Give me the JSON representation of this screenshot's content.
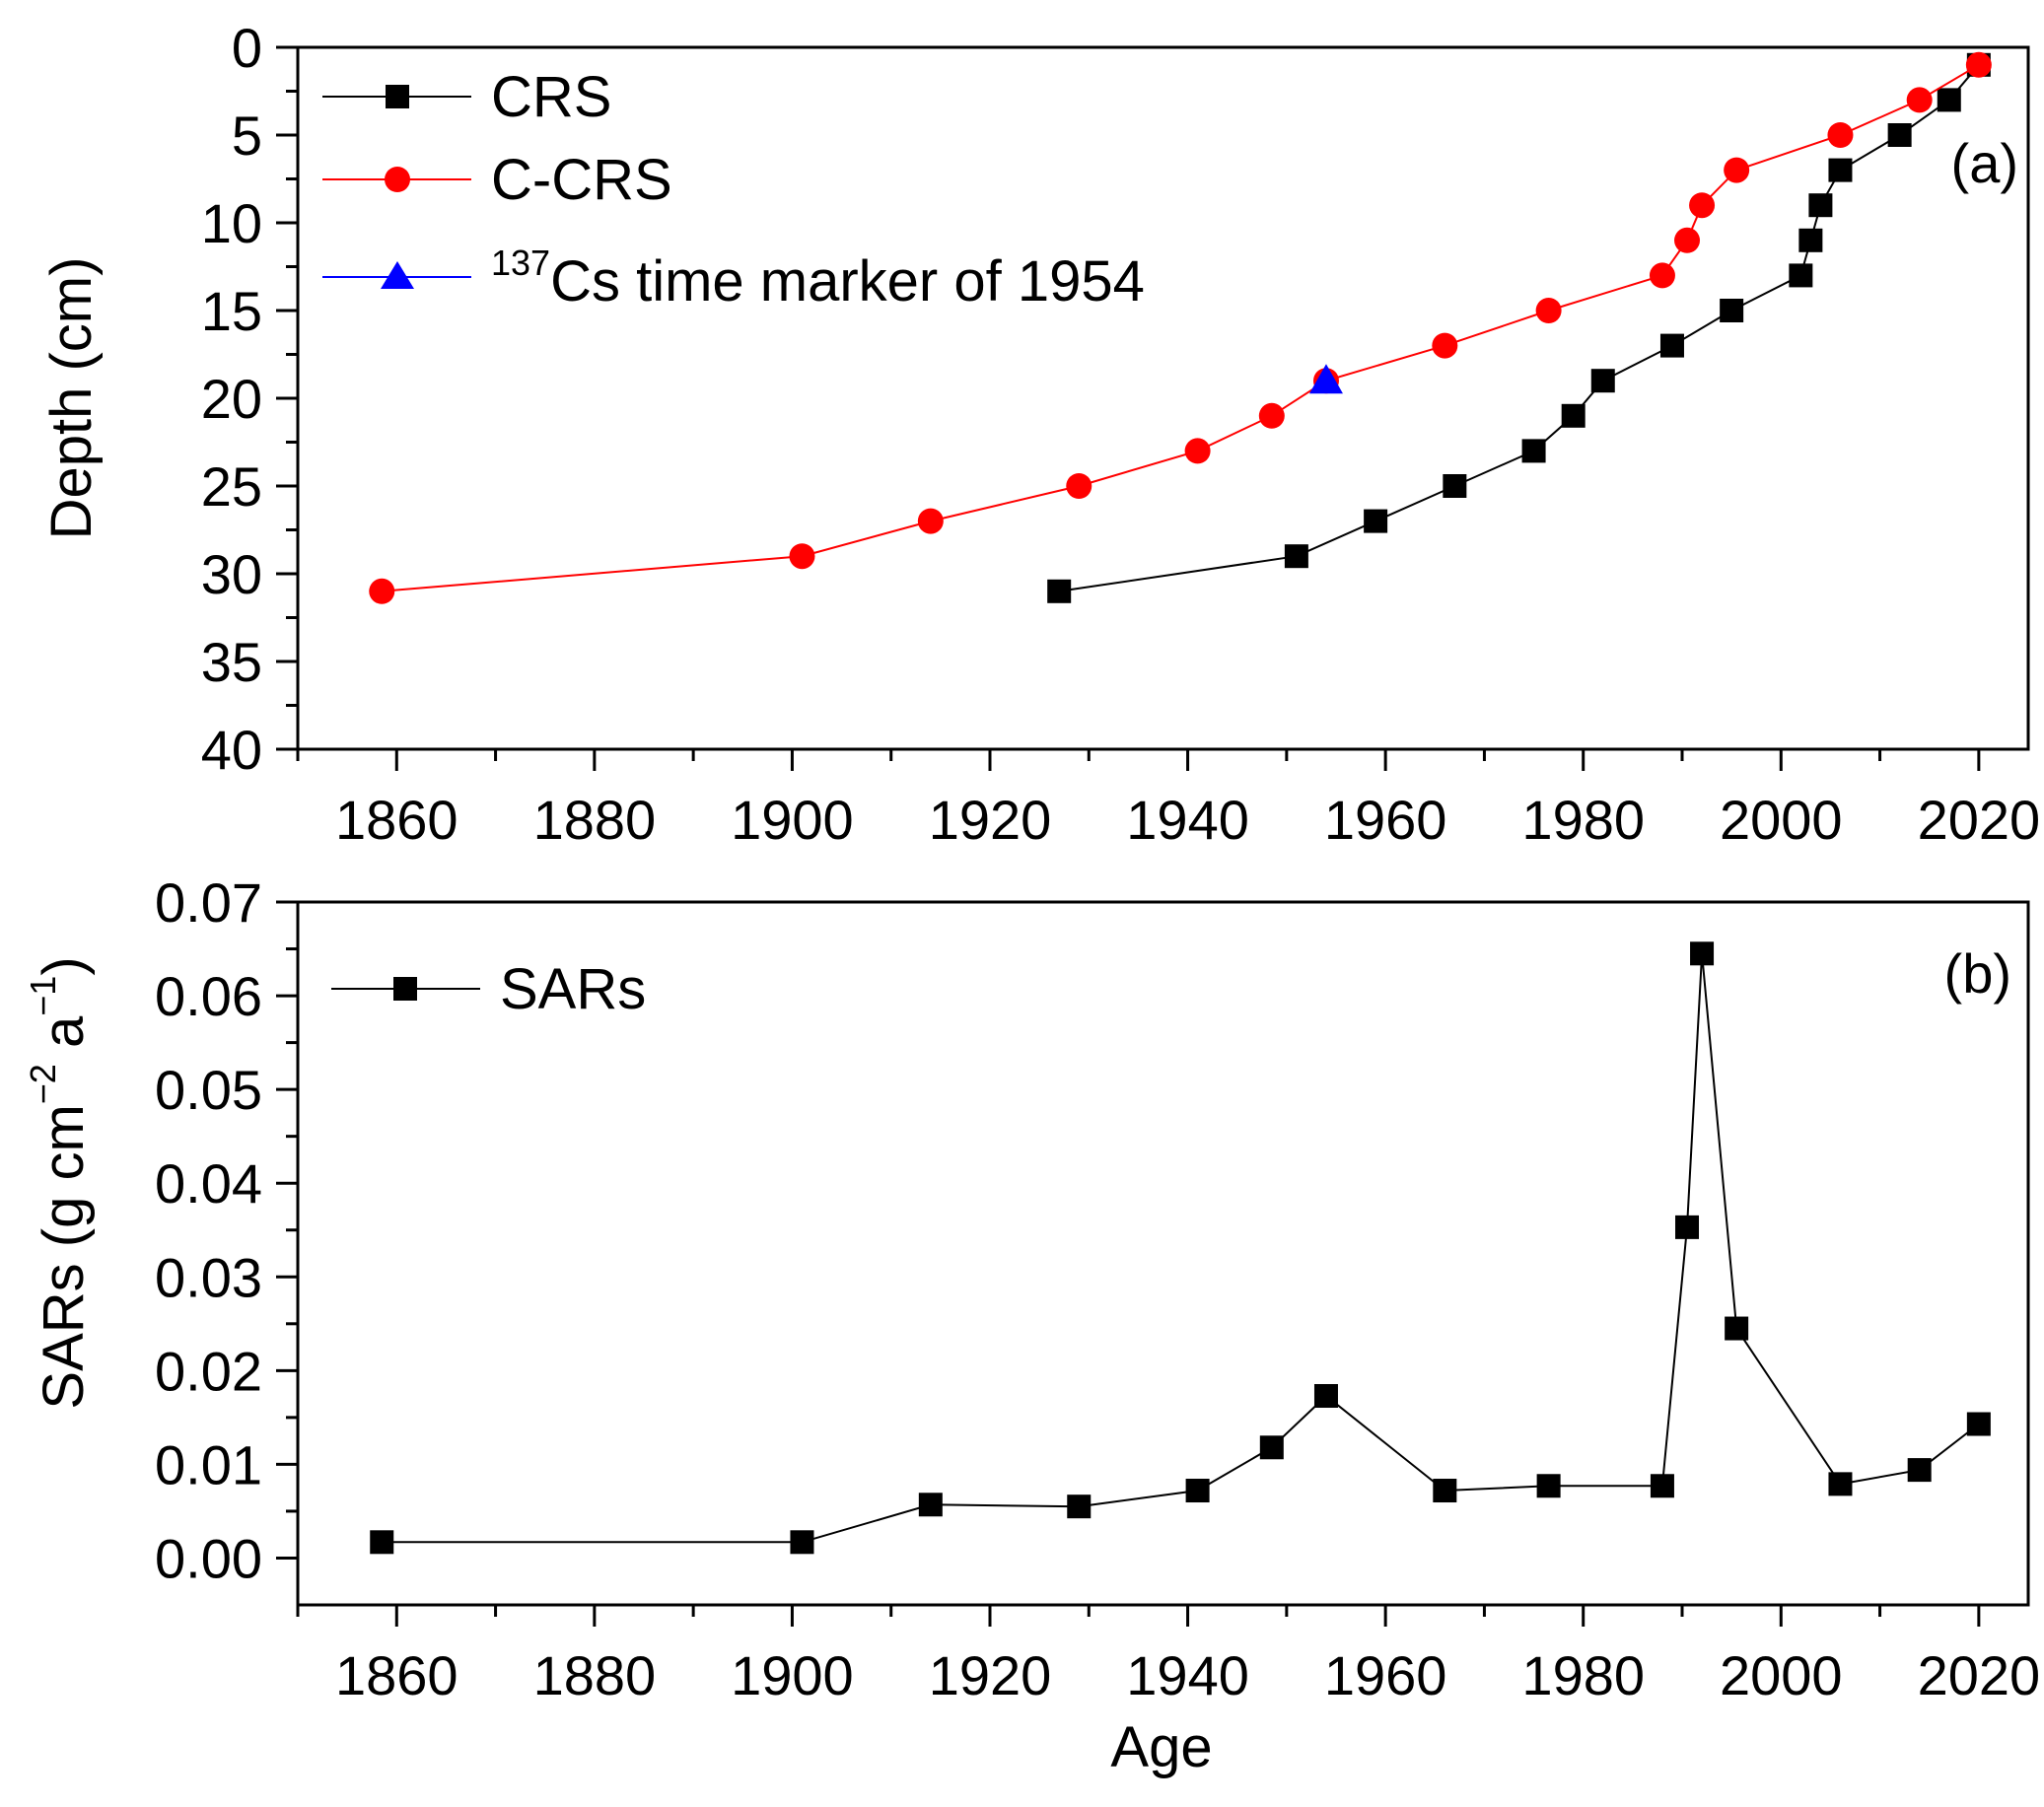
{
  "chart_data": [
    {
      "panel": "(a)",
      "type": "line",
      "xlabel": "",
      "ylabel": "Depth (cm)",
      "xlim": [
        1850,
        2025
      ],
      "ylim": [
        40,
        0
      ],
      "y_inverted": true,
      "x_ticks": [
        "1860",
        "1880",
        "1900",
        "1920",
        "1940",
        "1960",
        "1980",
        "2000",
        "2020"
      ],
      "y_ticks": [
        "0",
        "5",
        "10",
        "15",
        "20",
        "25",
        "30",
        "35",
        "40"
      ],
      "legend": [
        {
          "key": "crs",
          "label": "CRS"
        },
        {
          "key": "ccrs",
          "label": "C-CRS"
        },
        {
          "key": "cs",
          "label_sup": "137",
          "label": "Cs time marker of 1954"
        }
      ],
      "legend_position": "top-left",
      "series": [
        {
          "name": "CRS",
          "color": "#000000",
          "marker": "square",
          "x": [
            2020,
            2017,
            2012,
            2006,
            2004,
            2003,
            2002,
            1995,
            1989,
            1982,
            1979,
            1975,
            1967,
            1959,
            1951,
            1927
          ],
          "y": [
            1,
            3,
            5,
            7,
            9,
            11,
            13,
            15,
            17,
            19,
            21,
            23,
            25,
            27,
            29,
            31
          ]
        },
        {
          "name": "C-CRS",
          "color": "#ff0000",
          "marker": "circle",
          "x": [
            2020,
            2014,
            2006,
            1995.5,
            1992,
            1990.5,
            1988,
            1976.5,
            1966,
            1954,
            1948.5,
            1941,
            1929,
            1914,
            1901,
            1858.5
          ],
          "y": [
            1,
            3,
            5,
            7,
            9,
            11,
            13,
            15,
            17,
            19,
            21,
            23,
            25,
            27,
            29,
            31
          ]
        },
        {
          "name": "137Cs time marker of 1954",
          "color": "#0000ff",
          "marker": "triangle",
          "x": [
            1954
          ],
          "y": [
            19
          ]
        }
      ]
    },
    {
      "panel": "(b)",
      "type": "line",
      "xlabel": "Age",
      "ylabel": "SARs (g cm⁻² a⁻¹)",
      "ylabel_parts": {
        "a": "SARs (g cm",
        "b": "−2",
        "c": " a",
        "d": "−1",
        "e": ")"
      },
      "xlim": [
        1850,
        2025
      ],
      "ylim": [
        -0.005,
        0.07
      ],
      "x_ticks": [
        "1860",
        "1880",
        "1900",
        "1920",
        "1940",
        "1960",
        "1980",
        "2000",
        "2020"
      ],
      "y_ticks": [
        "0.00",
        "0.01",
        "0.02",
        "0.03",
        "0.04",
        "0.05",
        "0.06",
        "0.07"
      ],
      "legend": [
        {
          "key": "sars",
          "label": "SARs"
        }
      ],
      "legend_position": "top-left",
      "series": [
        {
          "name": "SARs",
          "color": "#000000",
          "marker": "square",
          "x": [
            1858.5,
            1901,
            1914,
            1929,
            1941,
            1948.5,
            1954,
            1966,
            1976.5,
            1988,
            1990.5,
            1992,
            1995.5,
            2006,
            2014,
            2020
          ],
          "y": [
            0.0017,
            0.0017,
            0.0057,
            0.0055,
            0.0072,
            0.0118,
            0.0173,
            0.0072,
            0.0077,
            0.0077,
            0.0353,
            0.0645,
            0.0245,
            0.0079,
            0.0094,
            0.0143
          ]
        }
      ]
    }
  ]
}
